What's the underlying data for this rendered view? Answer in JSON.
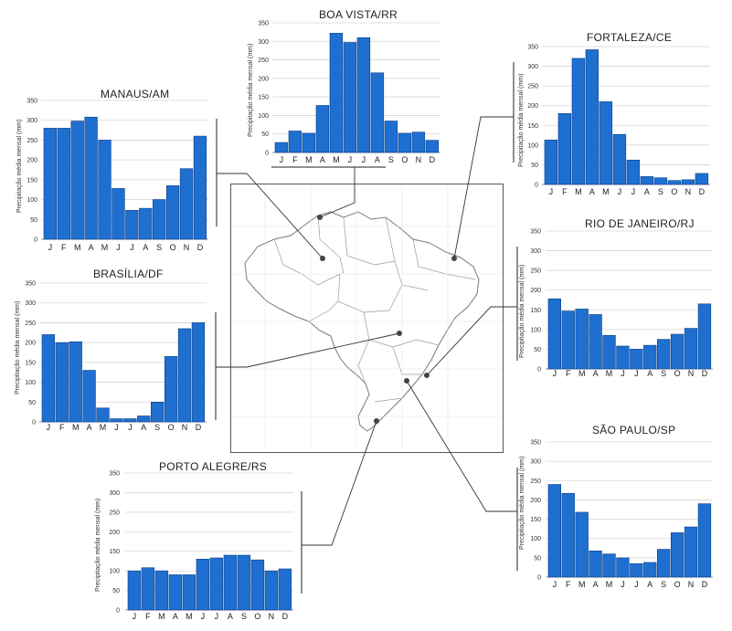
{
  "y_axis_label": "Precipitação média mensal (mm)",
  "months": [
    "J",
    "F",
    "M",
    "A",
    "M",
    "J",
    "J",
    "A",
    "S",
    "O",
    "N",
    "D"
  ],
  "y_ticks": [
    0,
    50,
    100,
    150,
    200,
    250,
    300,
    350
  ],
  "colors": {
    "bar": "#1f6fd1",
    "bar_edge": "#0d3f86",
    "grid": "#d6d6d6",
    "line": "#333333"
  },
  "chart_data": [
    {
      "type": "bar",
      "title": "MANAUS/AM",
      "categories": [
        "J",
        "F",
        "M",
        "A",
        "M",
        "J",
        "J",
        "A",
        "S",
        "O",
        "N",
        "D"
      ],
      "values": [
        280,
        280,
        298,
        308,
        250,
        128,
        73,
        78,
        100,
        135,
        178,
        260
      ],
      "ylabel": "Precipitação média mensal (mm)",
      "ylim": [
        0,
        350
      ]
    },
    {
      "type": "bar",
      "title": "BOA VISTA/RR",
      "categories": [
        "J",
        "F",
        "M",
        "A",
        "M",
        "J",
        "J",
        "A",
        "S",
        "O",
        "N",
        "D"
      ],
      "values": [
        27,
        58,
        52,
        127,
        322,
        297,
        310,
        215,
        85,
        52,
        55,
        33
      ],
      "ylabel": "Precipitação média mensal (mm)",
      "ylim": [
        0,
        350
      ]
    },
    {
      "type": "bar",
      "title": "FORTALEZA/CE",
      "categories": [
        "J",
        "F",
        "M",
        "A",
        "M",
        "J",
        "J",
        "A",
        "S",
        "O",
        "N",
        "D"
      ],
      "values": [
        113,
        180,
        320,
        342,
        210,
        127,
        62,
        20,
        17,
        10,
        12,
        28
      ],
      "ylabel": "Precipitação média mensal (mm)",
      "ylim": [
        0,
        350
      ]
    },
    {
      "type": "bar",
      "title": "BRASÍLIA/DF",
      "categories": [
        "J",
        "F",
        "M",
        "A",
        "M",
        "J",
        "J",
        "A",
        "S",
        "O",
        "N",
        "D"
      ],
      "values": [
        220,
        200,
        202,
        130,
        35,
        8,
        8,
        15,
        50,
        165,
        235,
        250
      ],
      "ylabel": "Precipitação média mensal (mm)",
      "ylim": [
        0,
        350
      ]
    },
    {
      "type": "bar",
      "title": "RIO DE JANEIRO/RJ",
      "categories": [
        "J",
        "F",
        "M",
        "A",
        "M",
        "J",
        "J",
        "A",
        "S",
        "O",
        "N",
        "D"
      ],
      "values": [
        178,
        147,
        152,
        138,
        85,
        58,
        50,
        60,
        75,
        88,
        103,
        165
      ],
      "ylabel": "Precipitação média mensal (mm)",
      "ylim": [
        0,
        350
      ]
    },
    {
      "type": "bar",
      "title": "SÃO PAULO/SP",
      "categories": [
        "J",
        "F",
        "M",
        "A",
        "M",
        "J",
        "J",
        "A",
        "S",
        "O",
        "N",
        "D"
      ],
      "values": [
        240,
        217,
        168,
        68,
        60,
        50,
        35,
        38,
        72,
        115,
        130,
        190
      ],
      "ylabel": "Precipitação média mensal (mm)",
      "ylim": [
        0,
        350
      ]
    },
    {
      "type": "bar",
      "title": "PORTO ALEGRE/RS",
      "categories": [
        "J",
        "F",
        "M",
        "A",
        "M",
        "J",
        "J",
        "A",
        "S",
        "O",
        "N",
        "D"
      ],
      "values": [
        100,
        108,
        100,
        90,
        90,
        130,
        133,
        140,
        140,
        128,
        100,
        105
      ],
      "ylabel": "Precipitação média mensal (mm)",
      "ylim": [
        0,
        350
      ]
    }
  ]
}
